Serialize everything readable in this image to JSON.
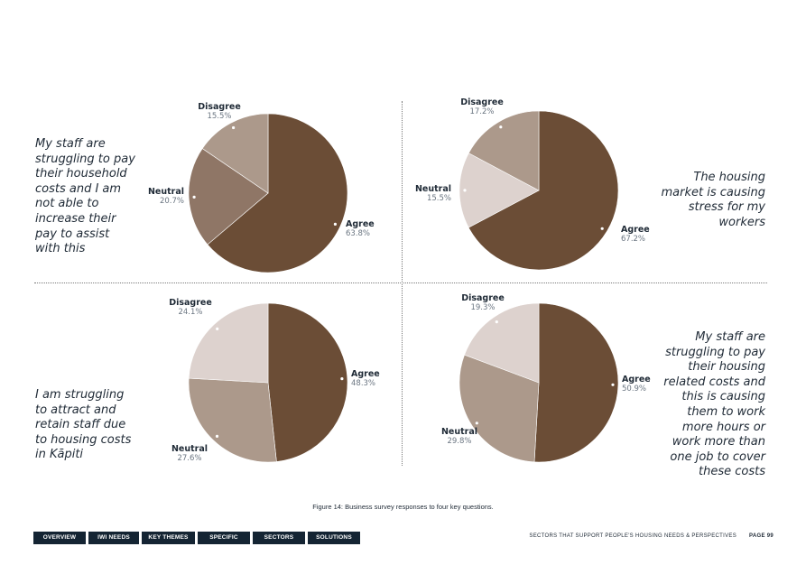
{
  "colors": {
    "agree": "#6b4d36",
    "neutral_dark": "#8f7666",
    "disagree_mid": "#ac998b",
    "neutral_light": "#ddd2ce",
    "label_title": "#1f2a36",
    "label_value": "#6a7581",
    "nav_bg": "#142433"
  },
  "questions": [
    {
      "text": "My staff are struggling to pay their household costs and I am not able to increase their pay to assist with this"
    },
    {
      "text": "The housing market is causing stress for my workers"
    },
    {
      "text": "I am struggling to attract and retain staff due to housing costs in Kāpiti"
    },
    {
      "text": "My staff are struggling to pay their housing related costs and this is causing them to work more hours or work more than one job to cover these costs"
    }
  ],
  "chart_data": [
    {
      "type": "pie",
      "labels": [
        "Agree",
        "Neutral",
        "Disagree"
      ],
      "values": [
        63.8,
        20.7,
        15.5
      ],
      "value_labels": [
        "63.8%",
        "20.7%",
        "15.5%"
      ],
      "colors": [
        "#6b4d36",
        "#8f7666",
        "#ac998b"
      ]
    },
    {
      "type": "pie",
      "labels": [
        "Agree",
        "Neutral",
        "Disagree"
      ],
      "values": [
        67.2,
        15.5,
        17.2
      ],
      "value_labels": [
        "67.2%",
        "15.5%",
        "17.2%"
      ],
      "colors": [
        "#6b4d36",
        "#ddd2ce",
        "#ac998b"
      ]
    },
    {
      "type": "pie",
      "labels": [
        "Agree",
        "Neutral",
        "Disagree"
      ],
      "values": [
        48.3,
        27.6,
        24.1
      ],
      "value_labels": [
        "48.3%",
        "27.6%",
        "24.1%"
      ],
      "colors": [
        "#6b4d36",
        "#ac998b",
        "#ddd2ce"
      ]
    },
    {
      "type": "pie",
      "labels": [
        "Agree",
        "Neutral",
        "Disagree"
      ],
      "values": [
        50.9,
        29.8,
        19.3
      ],
      "value_labels": [
        "50.9%",
        "29.8%",
        "19.3%"
      ],
      "colors": [
        "#6b4d36",
        "#ac998b",
        "#ddd2ce"
      ]
    }
  ],
  "caption": "Figure 14: Business survey responses to four key questions.",
  "nav": {
    "items": [
      "OVERVIEW",
      "IWI NEEDS",
      "KEY THEMES",
      "SPECIFIC GROUPS",
      "SECTORS",
      "SOLUTIONS"
    ]
  },
  "footer": {
    "section_title": "SECTORS THAT SUPPORT PEOPLE'S HOUSING NEEDS & PERSPECTIVES",
    "page_label": "PAGE 99"
  }
}
